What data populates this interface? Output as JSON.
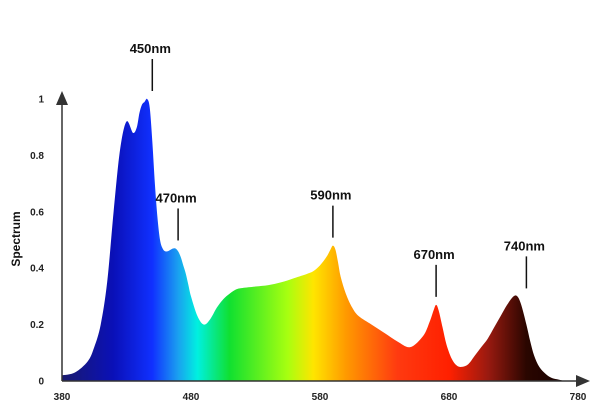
{
  "chart_data": {
    "type": "area",
    "title": "",
    "xlabel": "",
    "ylabel": "Spectrum",
    "xlim": [
      380,
      780
    ],
    "ylim": [
      0,
      1
    ],
    "x_ticks": [
      "380",
      "480",
      "580",
      "680",
      "780"
    ],
    "y_ticks": [
      "0",
      "0.2",
      "0.4",
      "0.6",
      "0.8",
      "1"
    ],
    "grid": false,
    "legend": "none",
    "gradient": {
      "stops": [
        {
          "wavelength": 380,
          "color": "#1a1a6e"
        },
        {
          "wavelength": 420,
          "color": "#0a10b8"
        },
        {
          "wavelength": 450,
          "color": "#1030ff"
        },
        {
          "wavelength": 470,
          "color": "#1aa0f0"
        },
        {
          "wavelength": 485,
          "color": "#00f0e0"
        },
        {
          "wavelength": 510,
          "color": "#10e030"
        },
        {
          "wavelength": 555,
          "color": "#a8ff10"
        },
        {
          "wavelength": 575,
          "color": "#ffe500"
        },
        {
          "wavelength": 600,
          "color": "#ff9a00"
        },
        {
          "wavelength": 640,
          "color": "#ff3a10"
        },
        {
          "wavelength": 680,
          "color": "#ff2000"
        },
        {
          "wavelength": 710,
          "color": "#9a1a10"
        },
        {
          "wavelength": 740,
          "color": "#2a0600"
        },
        {
          "wavelength": 780,
          "color": "#120000"
        }
      ]
    },
    "series": [
      {
        "x": [
          380,
          390,
          400,
          405,
          410,
          415,
          420,
          425,
          430,
          435,
          438,
          440,
          442,
          444,
          446,
          448,
          450,
          452,
          454,
          456,
          458,
          460,
          462,
          464,
          466,
          468,
          470,
          472,
          474,
          476,
          478,
          480,
          485,
          490,
          495,
          500,
          505,
          510,
          515,
          520,
          530,
          540,
          550,
          560,
          570,
          575,
          580,
          585,
          588,
          590,
          592,
          594,
          596,
          600,
          605,
          610,
          620,
          630,
          640,
          650,
          660,
          665,
          668,
          670,
          672,
          675,
          678,
          682,
          686,
          690,
          695,
          700,
          705,
          710,
          715,
          720,
          725,
          730,
          733,
          736,
          740,
          743,
          746,
          750,
          755,
          760,
          765,
          770,
          775,
          780
        ],
        "y": [
          0.02,
          0.03,
          0.07,
          0.12,
          0.2,
          0.35,
          0.6,
          0.82,
          0.92,
          0.88,
          0.9,
          0.95,
          0.98,
          0.99,
          1.0,
          0.97,
          0.85,
          0.7,
          0.58,
          0.5,
          0.47,
          0.46,
          0.46,
          0.465,
          0.47,
          0.47,
          0.46,
          0.44,
          0.41,
          0.38,
          0.34,
          0.3,
          0.23,
          0.2,
          0.22,
          0.26,
          0.29,
          0.31,
          0.325,
          0.33,
          0.335,
          0.34,
          0.35,
          0.365,
          0.38,
          0.39,
          0.41,
          0.44,
          0.465,
          0.48,
          0.465,
          0.42,
          0.37,
          0.31,
          0.26,
          0.23,
          0.2,
          0.17,
          0.14,
          0.12,
          0.16,
          0.21,
          0.25,
          0.27,
          0.25,
          0.19,
          0.13,
          0.08,
          0.055,
          0.05,
          0.06,
          0.09,
          0.12,
          0.15,
          0.19,
          0.23,
          0.27,
          0.3,
          0.3,
          0.27,
          0.2,
          0.14,
          0.09,
          0.05,
          0.025,
          0.01,
          0.005,
          0.0,
          0.0,
          0.0
        ]
      }
    ],
    "annotations": [
      {
        "label": "450nm",
        "x": 450,
        "y": 1.0
      },
      {
        "label": "470nm",
        "x": 470,
        "y": 0.47
      },
      {
        "label": "590nm",
        "x": 590,
        "y": 0.48
      },
      {
        "label": "670nm",
        "x": 670,
        "y": 0.27
      },
      {
        "label": "740nm",
        "x": 740,
        "y": 0.3
      }
    ]
  }
}
